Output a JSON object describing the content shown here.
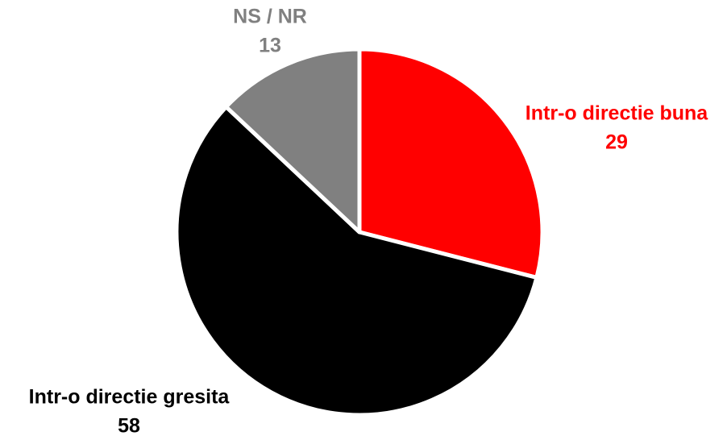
{
  "chart_data": {
    "type": "pie",
    "categories": [
      "Intr-o directie buna",
      "Intr-o directie gresita",
      "NS / NR"
    ],
    "values": [
      29,
      58,
      13
    ],
    "colors": [
      "#ff0000",
      "#000000",
      "#808080"
    ]
  }
}
